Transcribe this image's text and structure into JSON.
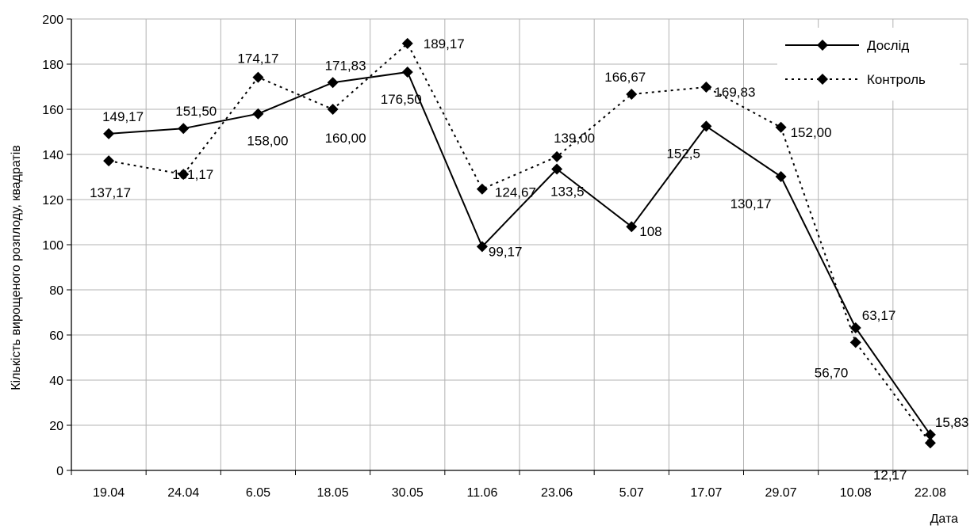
{
  "chart_data": {
    "type": "line",
    "categories": [
      "19.04",
      "24.04",
      "6.05",
      "18.05",
      "30.05",
      "11.06",
      "23.06",
      "5.07",
      "17.07",
      "29.07",
      "10.08",
      "22.08"
    ],
    "series": [
      {
        "name": "Дослід",
        "style": "solid",
        "values": [
          149.17,
          151.5,
          158.0,
          171.83,
          176.5,
          99.17,
          133.5,
          108,
          152.5,
          130.17,
          63.17,
          15.83
        ],
        "labels": [
          "149,17",
          "151,50",
          "158,00",
          "171,83",
          "176,50",
          "99,17",
          "133,5",
          "108",
          "152,5",
          "130,17",
          "63,17",
          "15,83"
        ]
      },
      {
        "name": "Контроль",
        "style": "dotted",
        "values": [
          137.17,
          131.17,
          174.17,
          160.0,
          189.17,
          124.67,
          139.0,
          166.67,
          169.83,
          152.0,
          56.7,
          12.17
        ],
        "labels": [
          "137,17",
          "131,17",
          "174,17",
          "160,00",
          "189,17",
          "124,67",
          "139,00",
          "166,67",
          "169,83",
          "152,00",
          "56,70",
          "12,17"
        ]
      }
    ],
    "xlabel": "Дата",
    "ylabel": "Кількість вирощеного розплоду, квадратів",
    "ylim": [
      0,
      200
    ],
    "yticks": [
      0,
      20,
      40,
      60,
      80,
      100,
      120,
      140,
      160,
      180,
      200
    ],
    "grid": true,
    "legend": "top-right",
    "colors": {
      "line": "#000000",
      "grid": "#b3b3b3",
      "background": "#ffffff"
    }
  }
}
